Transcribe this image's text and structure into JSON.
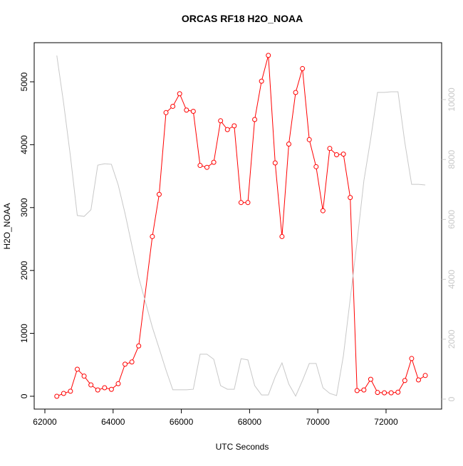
{
  "chart_data": {
    "type": "line",
    "title": "ORCAS RF18 H2O_NOAA",
    "xlabel": "UTC Seconds",
    "ylabel": "H2O_NOAA",
    "x": [
      62350,
      62550,
      62750,
      62950,
      63150,
      63350,
      63550,
      63750,
      63950,
      64150,
      64350,
      64550,
      64750,
      65150,
      65350,
      65550,
      65750,
      65950,
      66150,
      66350,
      66550,
      66750,
      66950,
      67150,
      67350,
      67550,
      67750,
      67950,
      68150,
      68350,
      68550,
      68750,
      68950,
      69150,
      69350,
      69550,
      69750,
      69950,
      70150,
      70350,
      70550,
      70750,
      70950,
      71150,
      71350,
      71550,
      71750,
      71950,
      72150,
      72350,
      72550,
      72750,
      72950,
      73150
    ],
    "series": [
      {
        "color": "#ff0000",
        "values": [
          0,
          45,
          80,
          430,
          320,
          180,
          100,
          135,
          110,
          200,
          510,
          545,
          800,
          2540,
          3210,
          4510,
          4610,
          4810,
          4550,
          4530,
          3670,
          3640,
          3720,
          4380,
          4240,
          4300,
          3080,
          3080,
          4400,
          5010,
          5420,
          3710,
          2540,
          4010,
          4830,
          5210,
          4080,
          3650,
          2950,
          3940,
          3840,
          3850,
          3160,
          90,
          100,
          270,
          60,
          55,
          55,
          65,
          250,
          600,
          260,
          330
        ]
      },
      {
        "color": "#c8c8c8",
        "axis": "y2",
        "values": [
          11470,
          9880,
          8100,
          6130,
          6100,
          6320,
          7810,
          7860,
          7840,
          7150,
          6200,
          5130,
          4060,
          2400,
          1690,
          970,
          310,
          310,
          310,
          330,
          1500,
          1500,
          1330,
          450,
          330,
          330,
          1350,
          1310,
          450,
          140,
          140,
          740,
          1210,
          500,
          100,
          620,
          1190,
          1190,
          380,
          190,
          120,
          1450,
          3350,
          5250,
          7290,
          8690,
          10240,
          10240,
          10260,
          10260,
          8570,
          7170,
          7170,
          7150
        ]
      }
    ],
    "xlim": [
      61687,
      73629
    ],
    "xticks": [
      62000,
      64000,
      66000,
      68000,
      70000,
      72000
    ],
    "ylim": [
      -204,
      5622
    ],
    "yticks": [
      0,
      1000,
      2000,
      3000,
      4000,
      5000
    ],
    "y2lim": [
      -333,
      11900
    ],
    "y2ticks": [
      0,
      2000,
      4000,
      6000,
      8000,
      10000
    ],
    "y2tick_color": "#c8c8c8"
  }
}
